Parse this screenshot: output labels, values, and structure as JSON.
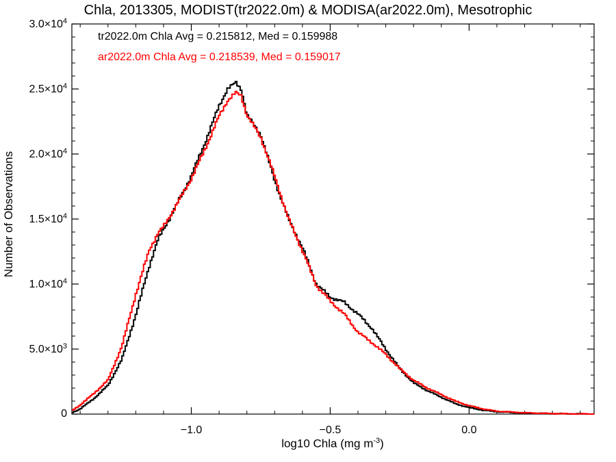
{
  "chart_data": {
    "type": "line",
    "title": "Chla, 2013305, MODIST(tr2022.0m) & MODISA(ar2022.0m), Mesotrophic",
    "xlabel_main": "log10 Chla (mg m",
    "xlabel_sup": "-3",
    "xlabel_close": ")",
    "ylabel": "Number of Observations",
    "xlim": [
      -1.43,
      0.45
    ],
    "ylim": [
      0,
      30000
    ],
    "x_ticks": [
      {
        "value": -1.0,
        "label": "−1.0"
      },
      {
        "value": -0.5,
        "label": "−0.5"
      },
      {
        "value": 0.0,
        "label": "0.0"
      }
    ],
    "y_ticks": [
      {
        "value": 0,
        "base": "0",
        "exp": ""
      },
      {
        "value": 5000,
        "base": "5.0×10",
        "exp": "3"
      },
      {
        "value": 10000,
        "base": "1.0×10",
        "exp": "4"
      },
      {
        "value": 15000,
        "base": "1.5×10",
        "exp": "4"
      },
      {
        "value": 20000,
        "base": "2.0×10",
        "exp": "4"
      },
      {
        "value": 25000,
        "base": "2.5×10",
        "exp": "4"
      },
      {
        "value": 30000,
        "base": "3.0×10",
        "exp": "4"
      }
    ],
    "annotations": [
      {
        "text": "tr2022.0m Chla Avg = 0.215812, Med = 0.159988",
        "color": "#000000"
      },
      {
        "text": "ar2022.0m Chla Avg = 0.218539, Med = 0.159017",
        "color": "#ff0000"
      }
    ],
    "series": [
      {
        "color": "#000000",
        "x": [
          -1.43,
          -1.4,
          -1.35,
          -1.3,
          -1.25,
          -1.2,
          -1.15,
          -1.12,
          -1.1,
          -1.05,
          -1.0,
          -0.95,
          -0.9,
          -0.87,
          -0.85,
          -0.84,
          -0.82,
          -0.8,
          -0.75,
          -0.7,
          -0.65,
          -0.6,
          -0.55,
          -0.5,
          -0.45,
          -0.4,
          -0.35,
          -0.3,
          -0.25,
          -0.2,
          -0.15,
          -0.1,
          -0.05,
          0.0,
          0.05,
          0.1,
          0.2,
          0.3,
          0.4,
          0.45
        ],
        "y": [
          100,
          400,
          1200,
          2200,
          4200,
          7600,
          11500,
          13400,
          14200,
          16200,
          18300,
          20900,
          23700,
          25000,
          25300,
          25500,
          25000,
          23000,
          21500,
          18000,
          15000,
          12800,
          10000,
          9000,
          8600,
          7700,
          6600,
          5000,
          3500,
          2400,
          1800,
          1300,
          800,
          500,
          300,
          180,
          80,
          35,
          12,
          5
        ]
      },
      {
        "color": "#ff0000",
        "x": [
          -1.43,
          -1.4,
          -1.35,
          -1.3,
          -1.25,
          -1.2,
          -1.15,
          -1.12,
          -1.1,
          -1.05,
          -1.0,
          -0.95,
          -0.9,
          -0.87,
          -0.85,
          -0.84,
          -0.82,
          -0.8,
          -0.75,
          -0.7,
          -0.65,
          -0.6,
          -0.55,
          -0.5,
          -0.45,
          -0.4,
          -0.35,
          -0.3,
          -0.25,
          -0.2,
          -0.15,
          -0.1,
          -0.05,
          0.0,
          0.05,
          0.1,
          0.2,
          0.3,
          0.4,
          0.45
        ],
        "y": [
          250,
          700,
          1600,
          2600,
          5200,
          9200,
          12700,
          13900,
          14400,
          16200,
          18100,
          20400,
          22900,
          24100,
          24500,
          24700,
          24500,
          23000,
          21300,
          18300,
          15000,
          12600,
          9900,
          8700,
          7700,
          6300,
          5500,
          4600,
          3500,
          2600,
          2000,
          1500,
          1000,
          650,
          400,
          220,
          100,
          40,
          12,
          5
        ]
      }
    ]
  }
}
